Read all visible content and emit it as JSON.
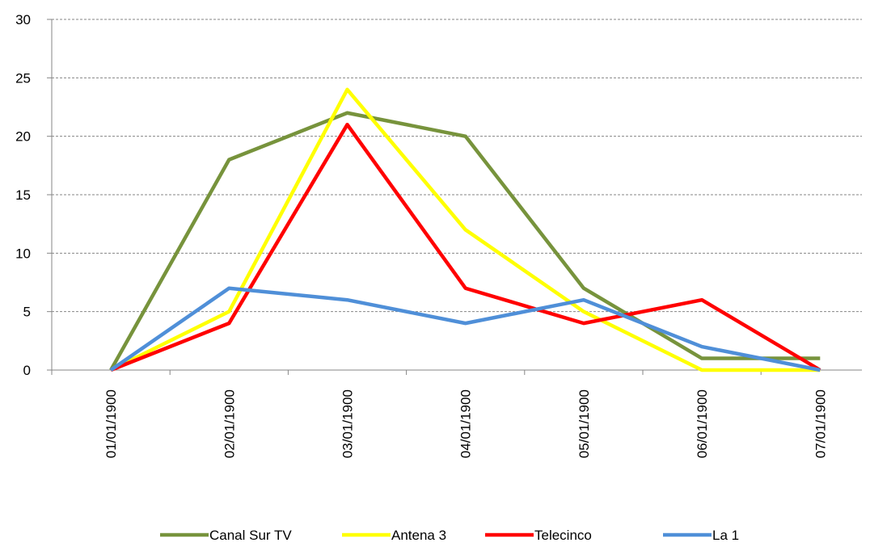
{
  "chart_data": {
    "type": "line",
    "categories": [
      "01/01/1900",
      "02/01/1900",
      "03/01/1900",
      "04/01/1900",
      "05/01/1900",
      "06/01/1900",
      "07/01/1900"
    ],
    "series": [
      {
        "name": "Canal Sur TV",
        "color": "#77933c",
        "values": [
          0,
          18,
          22,
          20,
          7,
          1,
          1
        ]
      },
      {
        "name": "Antena 3",
        "color": "#ffff00",
        "values": [
          0,
          5,
          24,
          12,
          5,
          0,
          0
        ]
      },
      {
        "name": "Telecinco",
        "color": "#ff0000",
        "values": [
          0,
          4,
          21,
          7,
          4,
          6,
          0
        ]
      },
      {
        "name": "La 1",
        "color": "#4f8fd8",
        "values": [
          0,
          7,
          6,
          4,
          6,
          2,
          0
        ]
      }
    ],
    "ylim": [
      0,
      30
    ],
    "yticks": [
      0,
      5,
      10,
      15,
      20,
      25,
      30
    ],
    "grid": true,
    "legend": "bottom"
  }
}
